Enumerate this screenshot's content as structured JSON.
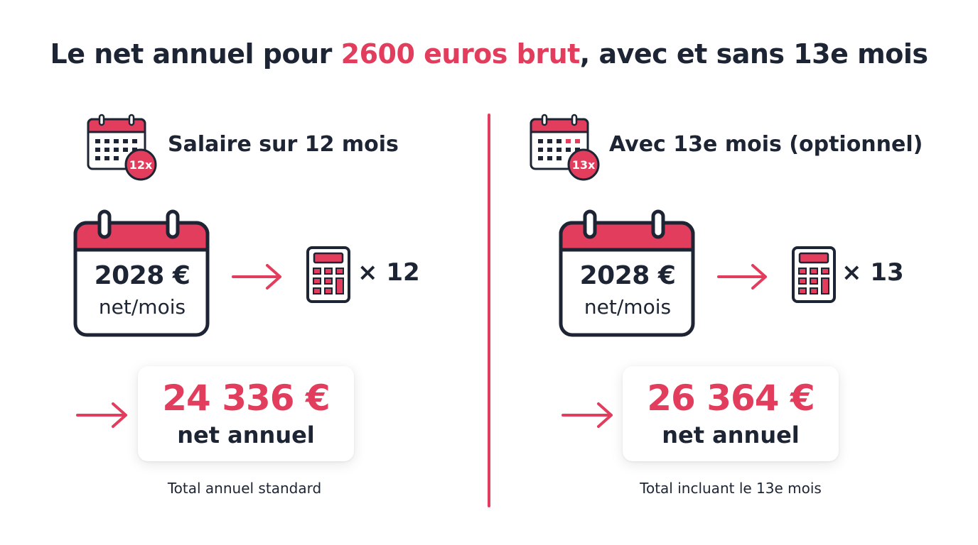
{
  "title": {
    "part1": "Le net annuel pour ",
    "highlight": "2600 euros brut",
    "part2": ", avec et sans 13e mois"
  },
  "colors": {
    "accent": "#e23d5c",
    "text": "#1d2433"
  },
  "panels": [
    {
      "header_badge": "12x",
      "header_label": "Salaire sur 12 mois",
      "monthly_amount": "2028 €",
      "monthly_unit": "net/mois",
      "multiplier": "× 12",
      "annual_amount": "24 336 €",
      "annual_unit": "net annuel",
      "caption": "Total annuel standard"
    },
    {
      "header_badge": "13x",
      "header_label": "Avec 13e mois (optionnel)",
      "monthly_amount": "2028 €",
      "monthly_unit": "net/mois",
      "multiplier": "× 13",
      "annual_amount": "26 364 €",
      "annual_unit": "net annuel",
      "caption": "Total incluant le 13e mois"
    }
  ],
  "icons": [
    "calendar-icon",
    "calendar-large-icon",
    "arrow-right-icon",
    "calculator-icon"
  ]
}
